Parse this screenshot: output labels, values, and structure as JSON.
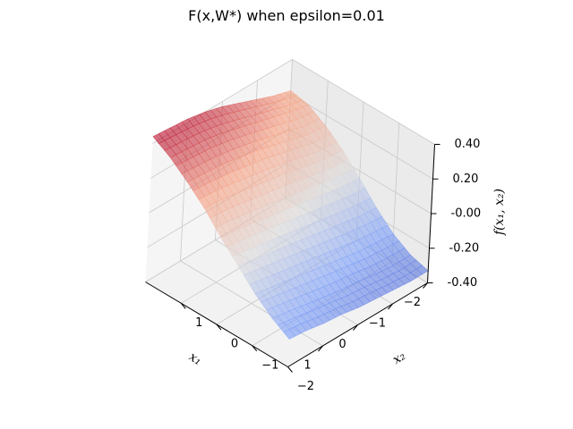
{
  "chart_data": {
    "type": "surface",
    "title": "F(x,W*) when epsilon=0.01",
    "xlabel": "x₁",
    "ylabel": "x₂",
    "zlabel": "f(x₁, x₂)",
    "xlim": [
      -2,
      2
    ],
    "ylim": [
      -2,
      2
    ],
    "zlim": [
      -0.4,
      0.4
    ],
    "x_ticks": [
      "−2",
      "−1",
      "0",
      "1"
    ],
    "y_ticks": [
      "−2",
      "−1",
      "0",
      "1"
    ],
    "z_ticks": [
      "0.40",
      "0.20",
      "-0.00",
      "-0.20",
      "-0.40"
    ],
    "colormap": "coolwarm",
    "grid": true,
    "surface": {
      "x": [
        -2,
        -1.5,
        -1,
        -0.5,
        0,
        0.5,
        1,
        1.5,
        2
      ],
      "y": [
        -2,
        -1.5,
        -1,
        -0.5,
        0,
        0.5,
        1,
        1.5,
        2
      ],
      "z": [
        [
          -0.33,
          -0.3,
          -0.24,
          -0.15,
          -0.04,
          0.06,
          0.14,
          0.2,
          0.22
        ],
        [
          -0.33,
          -0.3,
          -0.23,
          -0.14,
          -0.03,
          0.07,
          0.15,
          0.22,
          0.25
        ],
        [
          -0.32,
          -0.29,
          -0.22,
          -0.12,
          -0.01,
          0.09,
          0.18,
          0.25,
          0.29
        ],
        [
          -0.31,
          -0.27,
          -0.2,
          -0.1,
          0.01,
          0.12,
          0.21,
          0.28,
          0.33
        ],
        [
          -0.3,
          -0.26,
          -0.18,
          -0.08,
          0.03,
          0.14,
          0.24,
          0.31,
          0.37
        ],
        [
          -0.28,
          -0.24,
          -0.16,
          -0.06,
          0.05,
          0.16,
          0.26,
          0.34,
          0.4
        ],
        [
          -0.27,
          -0.22,
          -0.14,
          -0.04,
          0.07,
          0.18,
          0.28,
          0.36,
          0.42
        ],
        [
          -0.25,
          -0.2,
          -0.12,
          -0.02,
          0.09,
          0.2,
          0.29,
          0.37,
          0.43
        ],
        [
          -0.24,
          -0.18,
          -0.1,
          0.0,
          0.1,
          0.21,
          0.3,
          0.38,
          0.44
        ]
      ]
    }
  }
}
